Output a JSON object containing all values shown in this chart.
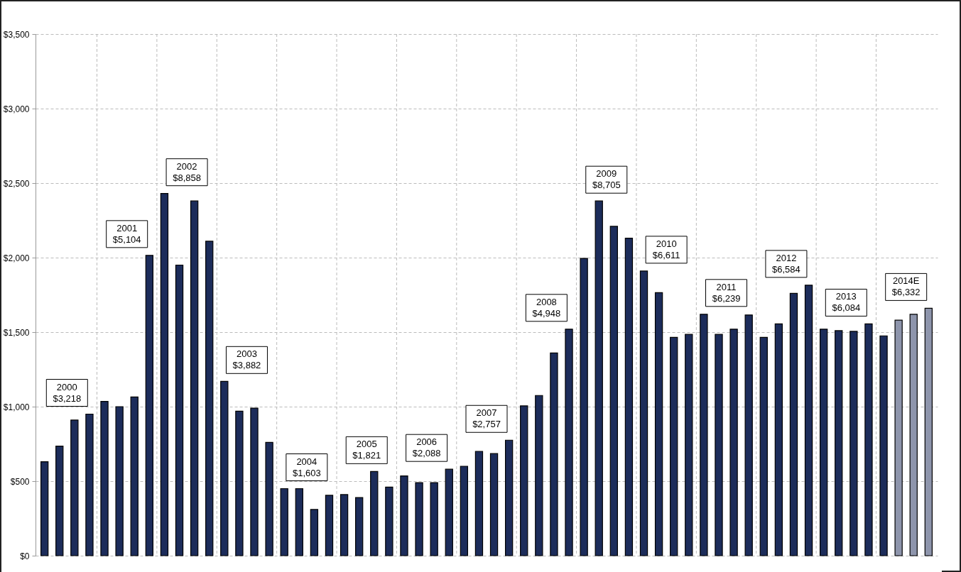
{
  "chart_data": {
    "type": "bar",
    "categories": [
      null,
      null,
      null,
      null,
      null,
      null,
      null,
      null,
      null,
      null,
      null,
      null,
      null,
      null,
      null,
      null,
      null,
      null,
      null,
      null,
      null,
      null,
      null,
      null,
      null,
      null,
      null,
      null,
      null,
      null,
      null,
      null,
      null,
      null,
      null,
      null,
      null,
      null,
      null,
      null,
      null,
      null,
      null,
      null,
      null,
      null,
      null,
      null,
      null,
      null,
      null,
      null,
      null,
      null,
      null,
      null,
      null,
      null,
      null,
      null
    ],
    "values": [
      630,
      735,
      910,
      950,
      1035,
      1000,
      1065,
      2015,
      2430,
      1950,
      2380,
      2110,
      1170,
      970,
      990,
      760,
      450,
      450,
      310,
      405,
      410,
      390,
      565,
      460,
      535,
      490,
      490,
      580,
      600,
      700,
      685,
      775,
      1005,
      1075,
      1360,
      1520,
      1995,
      2380,
      2210,
      2130,
      1910,
      1765,
      1465,
      1485,
      1620,
      1485,
      1520,
      1615,
      1465,
      1555,
      1760,
      1815,
      1520,
      1510,
      1505,
      1555,
      1475,
      1580,
      1620,
      1660
    ],
    "colors": [
      "#1c2c5a",
      "#1c2c5a",
      "#1c2c5a",
      "#1c2c5a",
      "#1c2c5a",
      "#1c2c5a",
      "#1c2c5a",
      "#1c2c5a",
      "#1c2c5a",
      "#1c2c5a",
      "#1c2c5a",
      "#1c2c5a",
      "#1c2c5a",
      "#1c2c5a",
      "#1c2c5a",
      "#1c2c5a",
      "#1c2c5a",
      "#1c2c5a",
      "#1c2c5a",
      "#1c2c5a",
      "#1c2c5a",
      "#1c2c5a",
      "#1c2c5a",
      "#1c2c5a",
      "#1c2c5a",
      "#1c2c5a",
      "#1c2c5a",
      "#1c2c5a",
      "#1c2c5a",
      "#1c2c5a",
      "#1c2c5a",
      "#1c2c5a",
      "#1c2c5a",
      "#1c2c5a",
      "#1c2c5a",
      "#1c2c5a",
      "#1c2c5a",
      "#1c2c5a",
      "#1c2c5a",
      "#1c2c5a",
      "#1c2c5a",
      "#1c2c5a",
      "#1c2c5a",
      "#1c2c5a",
      "#1c2c5a",
      "#1c2c5a",
      "#1c2c5a",
      "#1c2c5a",
      "#1c2c5a",
      "#1c2c5a",
      "#1c2c5a",
      "#1c2c5a",
      "#1c2c5a",
      "#1c2c5a",
      "#1c2c5a",
      "#1c2c5a",
      "#1c2c5a",
      "#8e95ac",
      "#8e95ac",
      "#8e95ac"
    ],
    "ylim": [
      0,
      3500
    ],
    "yticks": [
      {
        "value": 0,
        "label": "$0"
      },
      {
        "value": 500,
        "label": "$500"
      },
      {
        "value": 1000,
        "label": "$1,000"
      },
      {
        "value": 1500,
        "label": "$1,500"
      },
      {
        "value": 2000,
        "label": "$2,000"
      },
      {
        "value": 2500,
        "label": "$2,500"
      },
      {
        "value": 3000,
        "label": "$3,000"
      },
      {
        "value": 3500,
        "label": "$3,500"
      }
    ],
    "grid": true,
    "annotations": [
      "2000\n$3,218",
      "2001\n$5,104",
      "2002\n$8,858",
      "2003\n$3,882",
      "2004\n$1,603",
      "2005\n$1,821",
      "2006\n$2,088",
      "2007\n$2,757",
      "2008\n$4,948",
      "2009\n$8,705",
      "2010\n$6,611",
      "2011\n$6,239",
      "2012\n$6,584",
      "2013\n$6,084",
      "2014E\n$6,332"
    ]
  }
}
